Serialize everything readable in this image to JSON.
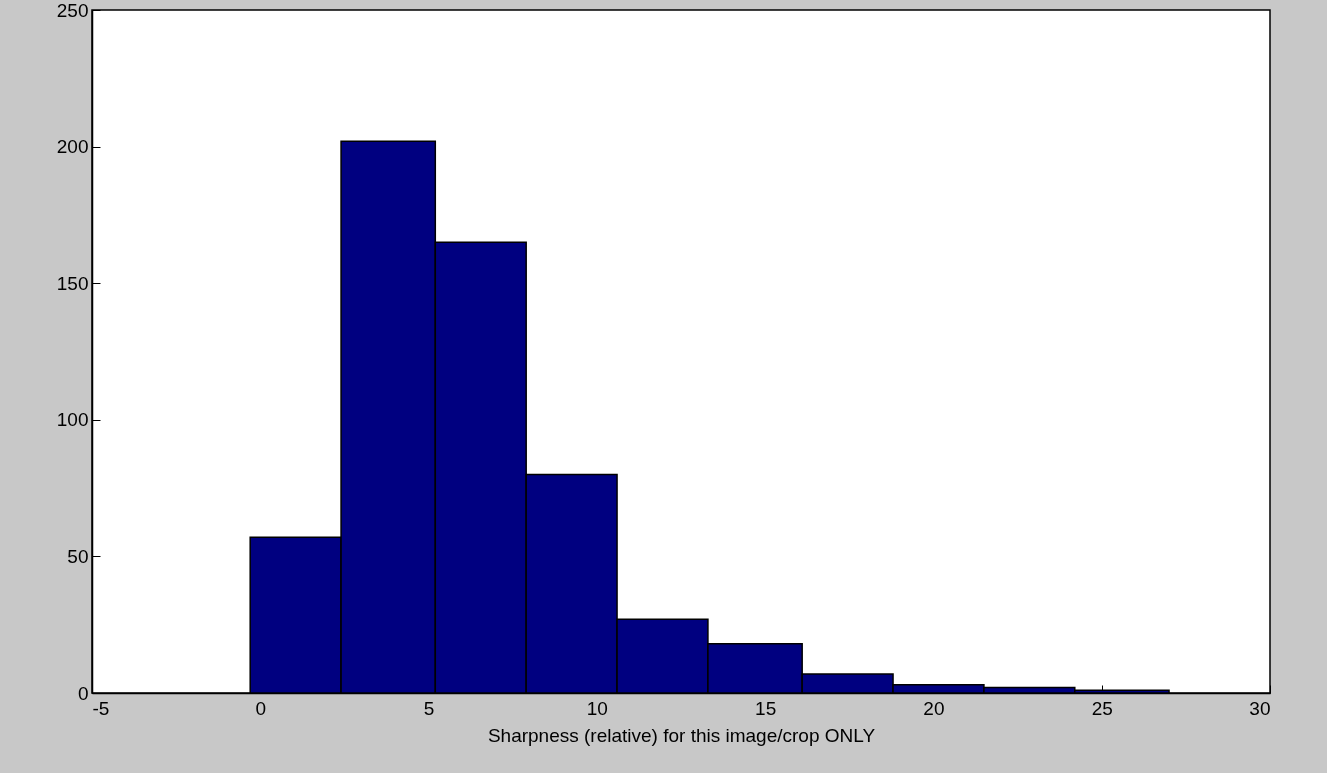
{
  "chart_data": {
    "type": "histogram",
    "xlabel": "Sharpness (relative) for this image/crop ONLY",
    "bins": [
      -0.3,
      2.4,
      5.2,
      7.9,
      10.6,
      13.3,
      16.1,
      18.8,
      21.5,
      24.2,
      27.0
    ],
    "values": [
      57,
      202,
      165,
      80,
      27,
      18,
      7,
      3,
      2,
      1
    ],
    "color": "#000080",
    "xlim": [
      -5,
      30
    ],
    "xticks": [
      -5,
      0,
      5,
      10,
      15,
      20,
      25,
      30
    ],
    "ylim": [
      0,
      250
    ],
    "yticks": [
      0,
      50,
      100,
      150,
      200,
      250
    ],
    "grid": false
  }
}
